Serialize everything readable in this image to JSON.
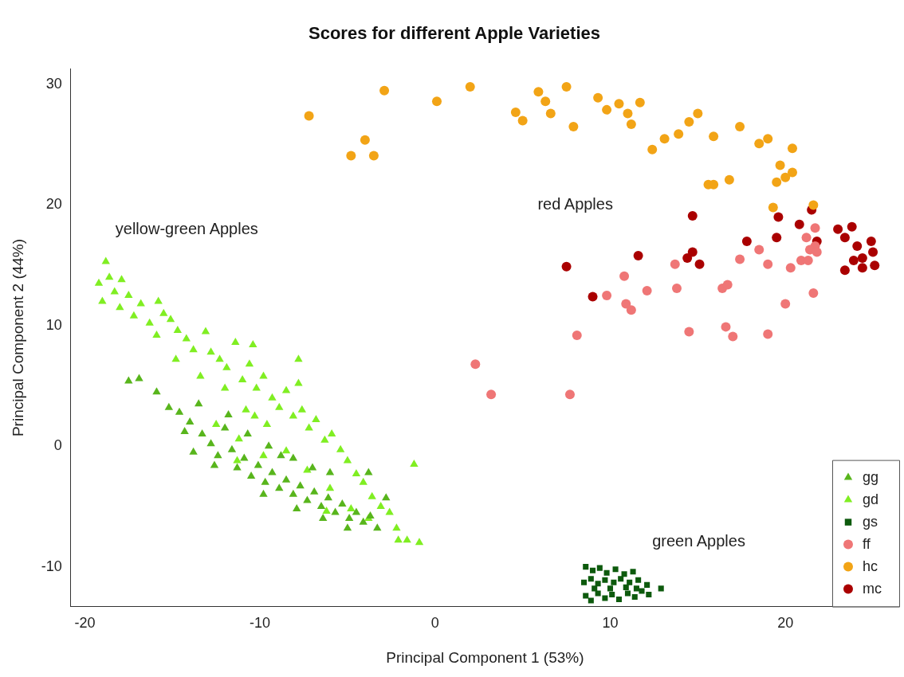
{
  "chart_data": {
    "type": "scatter",
    "title": "Scores for different Apple Varieties",
    "xlabel": "Principal Component 1 (53%)",
    "ylabel": "Principal Component 2 (44%)",
    "xlim": [
      -20.8,
      26.5
    ],
    "ylim": [
      -13.3,
      31.3
    ],
    "xticks": [
      -20,
      -10,
      0,
      10,
      20
    ],
    "yticks": [
      -10,
      0,
      10,
      20,
      30
    ],
    "grid": false,
    "legend": "bottom right",
    "annotations": [
      "yellow-green Apples",
      "red Apples",
      "green Apples"
    ],
    "series": [
      {
        "name": "gg",
        "color": "#58b51c",
        "marker": "triangle",
        "x": [
          -17.5,
          -16.9,
          -15.9,
          -15.2,
          -14.6,
          -14.0,
          -13.5,
          -13.3,
          -12.8,
          -12.4,
          -12.0,
          -11.6,
          -11.3,
          -10.9,
          -10.5,
          -10.1,
          -9.7,
          -9.3,
          -8.9,
          -8.5,
          -8.1,
          -7.7,
          -7.3,
          -6.9,
          -6.5,
          -6.1,
          -5.7,
          -5.3,
          -4.9,
          -4.5,
          -4.1,
          -3.7,
          -3.8,
          -2.8,
          -3.3,
          -9.5,
          -8.8,
          -10.7,
          -11.8,
          -12.6,
          -13.8,
          -14.3,
          -9.8,
          -7.9,
          -6.4,
          -5.0,
          -7.0,
          -8.1,
          -6.0
        ],
        "values": [
          5.4,
          5.6,
          4.5,
          3.2,
          2.8,
          2.0,
          3.5,
          1.0,
          0.2,
          -0.8,
          1.5,
          -0.3,
          -1.8,
          -1.0,
          -2.5,
          -1.6,
          -3.0,
          -2.2,
          -3.5,
          -2.8,
          -4.0,
          -3.3,
          -4.5,
          -3.8,
          -5.0,
          -4.3,
          -5.5,
          -4.8,
          -6.0,
          -5.5,
          -6.3,
          -5.8,
          -2.2,
          -4.3,
          -6.8,
          0.0,
          -0.8,
          1.0,
          2.6,
          -1.6,
          -0.5,
          1.2,
          -4.0,
          -5.2,
          -6.0,
          -6.8,
          -1.8,
          -1.0,
          -2.2
        ]
      },
      {
        "name": "gd",
        "color": "#80ee22",
        "marker": "triangle",
        "x": [
          -18.8,
          -19.2,
          -18.6,
          -18.3,
          -19.0,
          -17.9,
          -18.0,
          -17.5,
          -17.2,
          -16.8,
          -16.3,
          -15.8,
          -15.5,
          -15.1,
          -15.9,
          -14.7,
          -14.2,
          -13.8,
          -13.1,
          -12.8,
          -12.3,
          -11.9,
          -11.4,
          -11.0,
          -10.6,
          -10.2,
          -9.8,
          -9.3,
          -8.9,
          -8.5,
          -8.1,
          -7.6,
          -7.2,
          -6.8,
          -6.3,
          -5.9,
          -5.4,
          -5.0,
          -4.5,
          -4.1,
          -3.6,
          -3.1,
          -2.6,
          -2.2,
          -1.6,
          -1.2,
          -3.8,
          -4.8,
          -6.0,
          -7.3,
          -8.5,
          -9.6,
          -10.8,
          -12.0,
          -13.4,
          -14.8,
          -12.5,
          -11.2,
          -9.8,
          -10.3,
          -7.8,
          -7.8,
          -11.3,
          -10.4,
          -6.2,
          -2.1,
          -0.9
        ],
        "values": [
          15.3,
          13.5,
          14.0,
          12.8,
          12.0,
          13.8,
          11.5,
          12.5,
          10.8,
          11.8,
          10.2,
          12.0,
          11.0,
          10.5,
          9.2,
          9.6,
          8.9,
          8.0,
          9.5,
          7.8,
          7.2,
          6.5,
          8.6,
          5.5,
          6.8,
          4.8,
          5.8,
          4.0,
          3.2,
          4.6,
          2.5,
          3.0,
          1.5,
          2.2,
          0.5,
          1.0,
          -0.3,
          -1.2,
          -2.3,
          -3.0,
          -4.2,
          -5.0,
          -5.5,
          -6.8,
          -7.8,
          -1.5,
          -6.0,
          -5.2,
          -3.5,
          -2.0,
          -0.4,
          1.8,
          3.0,
          4.8,
          5.8,
          7.2,
          1.8,
          0.6,
          -0.8,
          2.5,
          7.2,
          5.2,
          -1.2,
          8.4,
          -5.4,
          -7.8,
          -8.0
        ]
      },
      {
        "name": "gs",
        "color": "#0d5a0d",
        "marker": "square",
        "x": [
          8.6,
          9.0,
          9.4,
          9.8,
          10.3,
          10.8,
          11.3,
          8.5,
          8.9,
          9.3,
          9.7,
          10.2,
          10.6,
          11.1,
          11.6,
          12.1,
          8.6,
          8.9,
          9.3,
          9.7,
          10.1,
          10.5,
          11.0,
          11.4,
          11.8,
          12.2,
          12.9,
          10.0,
          10.9,
          9.1,
          11.5
        ],
        "values": [
          -10.0,
          -10.3,
          -10.1,
          -10.5,
          -10.2,
          -10.6,
          -10.4,
          -11.3,
          -11.0,
          -11.4,
          -11.1,
          -11.3,
          -11.0,
          -11.3,
          -11.1,
          -11.5,
          -12.4,
          -12.8,
          -12.2,
          -12.6,
          -12.3,
          -12.7,
          -12.2,
          -12.5,
          -12.0,
          -12.3,
          -11.8,
          -11.8,
          -11.7,
          -11.8,
          -11.8
        ]
      },
      {
        "name": "ff",
        "color": "#ef7676",
        "marker": "circle",
        "x": [
          21.7,
          21.2,
          21.7,
          21.4,
          21.8,
          20.9,
          21.3,
          20.3,
          18.5,
          19.0,
          17.4,
          13.7,
          10.8,
          9.8,
          12.1,
          10.9,
          11.2,
          13.8,
          16.4,
          16.7,
          20.0,
          21.6,
          8.1,
          14.5,
          16.6,
          17.0,
          19.0,
          2.3,
          3.2,
          7.7
        ],
        "values": [
          18.1,
          17.3,
          16.6,
          16.3,
          16.1,
          15.4,
          15.4,
          14.8,
          16.3,
          15.1,
          15.5,
          15.1,
          14.1,
          12.5,
          12.9,
          11.8,
          11.3,
          13.1,
          13.1,
          13.4,
          11.8,
          12.7,
          9.2,
          9.5,
          9.9,
          9.1,
          9.3,
          6.8,
          4.3,
          4.3
        ]
      },
      {
        "name": "hc",
        "color": "#f2a416",
        "marker": "circle",
        "x": [
          -7.2,
          -4.8,
          -4.0,
          -3.5,
          -2.9,
          0.1,
          2.0,
          4.6,
          5.0,
          5.9,
          6.3,
          6.6,
          7.5,
          7.9,
          9.3,
          9.8,
          10.5,
          11.0,
          11.2,
          11.7,
          12.4,
          13.1,
          13.9,
          14.5,
          15.0,
          15.9,
          17.4,
          18.5,
          19.0,
          20.4,
          19.7,
          20.4,
          20.0,
          19.5,
          16.8,
          15.6,
          15.9,
          19.3,
          21.6
        ],
        "values": [
          27.4,
          24.1,
          25.4,
          24.1,
          29.5,
          28.6,
          29.8,
          27.7,
          27.0,
          29.4,
          28.6,
          27.6,
          29.8,
          26.5,
          28.9,
          27.9,
          28.4,
          27.6,
          26.7,
          28.5,
          24.6,
          25.5,
          25.9,
          26.9,
          27.6,
          25.7,
          26.5,
          25.1,
          25.5,
          24.7,
          23.3,
          22.7,
          22.3,
          21.9,
          22.1,
          21.7,
          21.7,
          19.8,
          20.0
        ]
      },
      {
        "name": "mc",
        "color": "#aa0000",
        "marker": "circle",
        "x": [
          14.7,
          19.6,
          21.5,
          20.8,
          19.5,
          17.8,
          21.8,
          23.0,
          23.8,
          23.4,
          24.2,
          24.4,
          24.9,
          25.0,
          25.1,
          24.4,
          23.4,
          23.9,
          24.1,
          11.6,
          14.4,
          14.7,
          15.1,
          7.5,
          9.0
        ],
        "values": [
          19.1,
          19.0,
          19.6,
          18.4,
          17.3,
          17.0,
          17.0,
          18.0,
          18.2,
          17.3,
          null,
          15.6,
          17.0,
          16.1,
          15.0,
          14.8,
          14.6,
          15.4,
          16.6,
          15.8,
          15.6,
          16.1,
          15.1,
          14.9,
          12.4
        ]
      }
    ]
  }
}
